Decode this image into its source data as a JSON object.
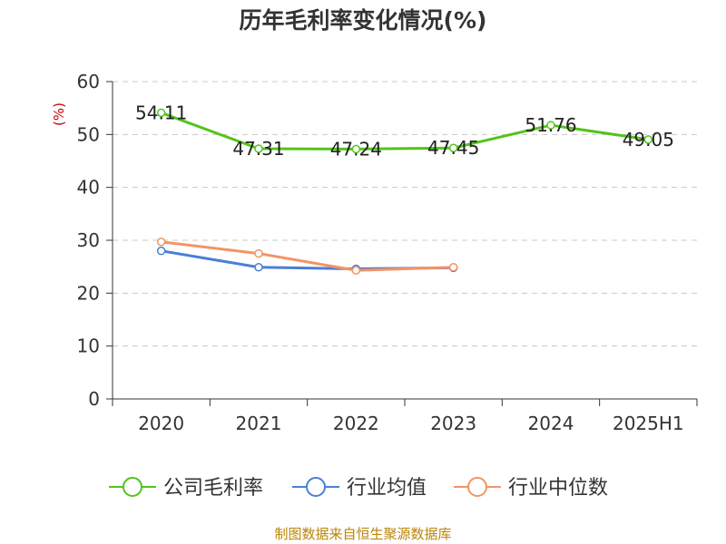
{
  "chart_data": {
    "type": "line",
    "title": "历年毛利率变化情况(%)",
    "ylabel": "(%)",
    "xlabel": "",
    "categories": [
      "2020",
      "2021",
      "2022",
      "2023",
      "2024",
      "2025H1"
    ],
    "ylim": [
      0,
      60
    ],
    "yticks": [
      0,
      10,
      20,
      30,
      40,
      50,
      60
    ],
    "grid": true,
    "legend_position": "bottom",
    "series": [
      {
        "name": "公司毛利率",
        "color": "#52c41a",
        "values": [
          54.11,
          47.31,
          47.24,
          47.45,
          51.76,
          49.05
        ],
        "show_labels": true
      },
      {
        "name": "行业均值",
        "color": "#4a7fd6",
        "values": [
          28.0,
          24.9,
          24.6,
          24.8,
          null,
          null
        ],
        "show_labels": false
      },
      {
        "name": "行业中位数",
        "color": "#f49464",
        "values": [
          29.7,
          27.5,
          24.3,
          24.9,
          null,
          null
        ],
        "show_labels": false
      }
    ],
    "data_labels": [
      "54.11",
      "47.31",
      "47.24",
      "47.45",
      "51.76",
      "49.05"
    ],
    "source": "制图数据来自恒生聚源数据库"
  }
}
